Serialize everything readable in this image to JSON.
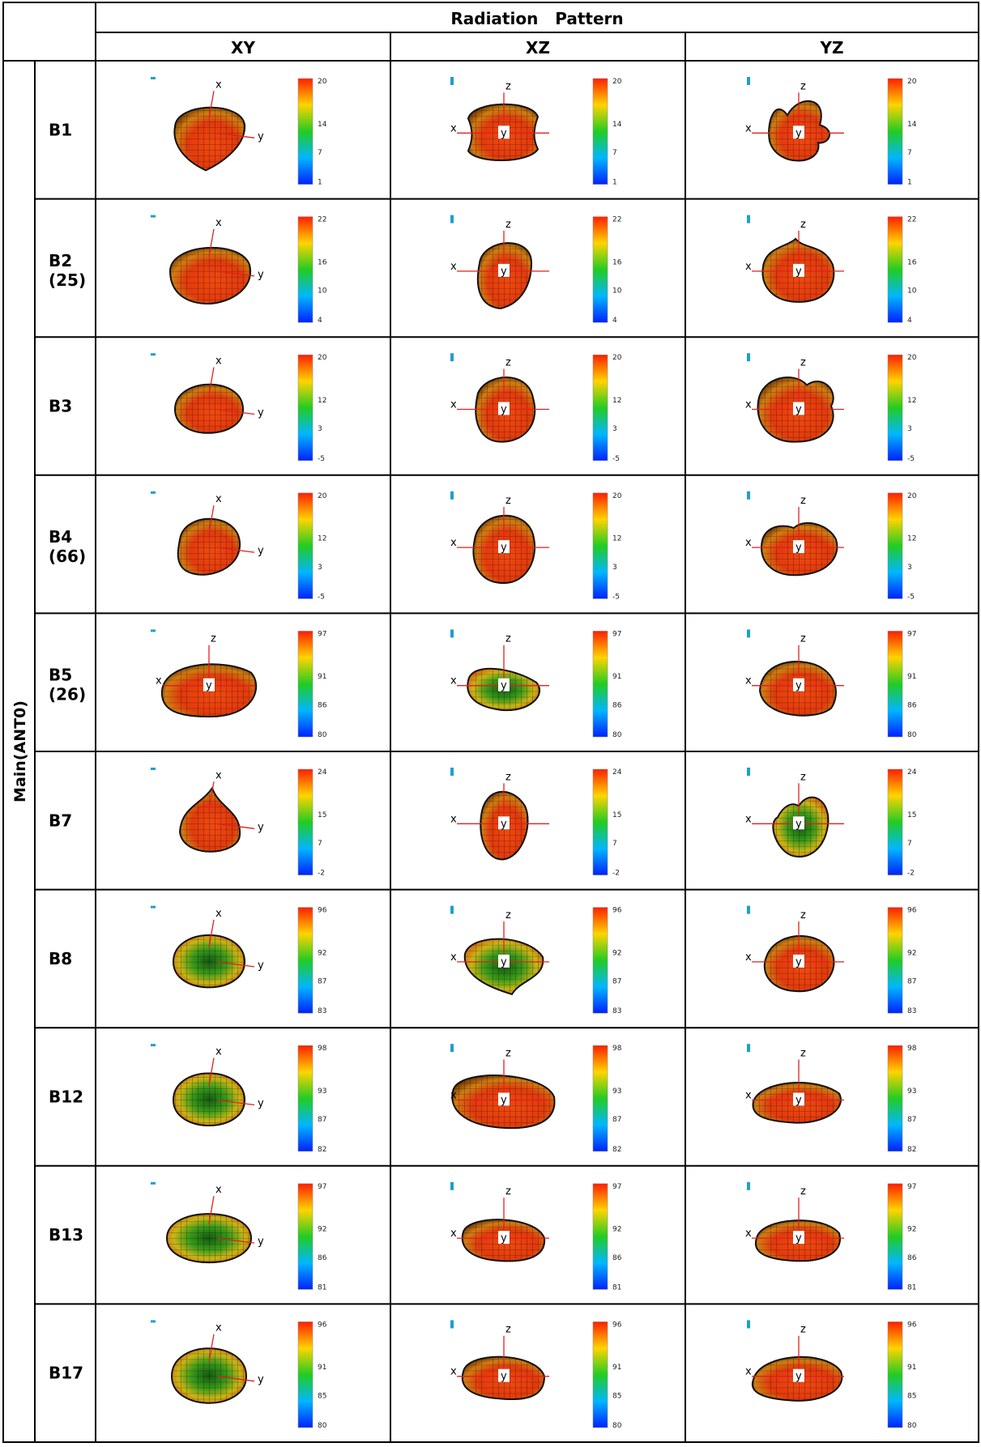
{
  "table": {
    "title": "Radiation   Pattern",
    "columns": [
      "XY",
      "XZ",
      "YZ"
    ],
    "group_label": "Main(ANT0)",
    "rows": [
      {
        "band": "B1",
        "sub": "",
        "scale": [
          [
            "20",
            "14",
            "7",
            "1"
          ],
          [
            "20",
            "14",
            "7",
            "1"
          ],
          [
            "20",
            "14",
            "7",
            "1"
          ]
        ]
      },
      {
        "band": "B2",
        "sub": "(25)",
        "scale": [
          [
            "22",
            "16",
            "10",
            "4"
          ],
          [
            "22",
            "16",
            "10",
            "4"
          ],
          [
            "22",
            "16",
            "10",
            "4"
          ]
        ]
      },
      {
        "band": "B3",
        "sub": "",
        "scale": [
          [
            "20",
            "12",
            "3",
            "-5"
          ],
          [
            "20",
            "12",
            "3",
            "-5"
          ],
          [
            "20",
            "12",
            "3",
            "-5"
          ]
        ]
      },
      {
        "band": "B4",
        "sub": "(66)",
        "scale": [
          [
            "20",
            "12",
            "3",
            "-5"
          ],
          [
            "20",
            "12",
            "3",
            "-5"
          ],
          [
            "20",
            "12",
            "3",
            "-5"
          ]
        ]
      },
      {
        "band": "B5",
        "sub": "(26)",
        "scale": [
          [
            "97",
            "91",
            "86",
            "80"
          ],
          [
            "97",
            "91",
            "86",
            "80"
          ],
          [
            "97",
            "91",
            "86",
            "80"
          ]
        ]
      },
      {
        "band": "B7",
        "sub": "",
        "scale": [
          [
            "24",
            "15",
            "7",
            "-2"
          ],
          [
            "24",
            "15",
            "7",
            "-2"
          ],
          [
            "24",
            "15",
            "7",
            "-2"
          ]
        ]
      },
      {
        "band": "B8",
        "sub": "",
        "scale": [
          [
            "96",
            "92",
            "87",
            "83"
          ],
          [
            "96",
            "92",
            "87",
            "83"
          ],
          [
            "96",
            "92",
            "87",
            "83"
          ]
        ]
      },
      {
        "band": "B12",
        "sub": "",
        "scale": [
          [
            "98",
            "93",
            "87",
            "82"
          ],
          [
            "98",
            "93",
            "87",
            "82"
          ],
          [
            "98",
            "93",
            "87",
            "82"
          ]
        ]
      },
      {
        "band": "B13",
        "sub": "",
        "scale": [
          [
            "97",
            "92",
            "86",
            "81"
          ],
          [
            "97",
            "92",
            "86",
            "81"
          ],
          [
            "97",
            "92",
            "86",
            "81"
          ]
        ]
      },
      {
        "band": "B17",
        "sub": "",
        "scale": [
          [
            "96",
            "91",
            "85",
            "80"
          ],
          [
            "96",
            "91",
            "85",
            "80"
          ],
          [
            "96",
            "91",
            "85",
            "80"
          ]
        ]
      }
    ]
  },
  "axis_labels": {
    "XY": [
      "x",
      "y"
    ],
    "XZ": [
      "z",
      "x",
      "y"
    ],
    "YZ": [
      "z",
      "x",
      "y"
    ],
    "B5_XY": [
      "z",
      "x",
      "y"
    ]
  },
  "colors": {
    "grid_line": "#000000",
    "pattern_dominant": "#e04a10",
    "colorbar": [
      "#ff1f00",
      "#ffd400",
      "#22cc22",
      "#00b7ff",
      "#0022ff"
    ]
  }
}
